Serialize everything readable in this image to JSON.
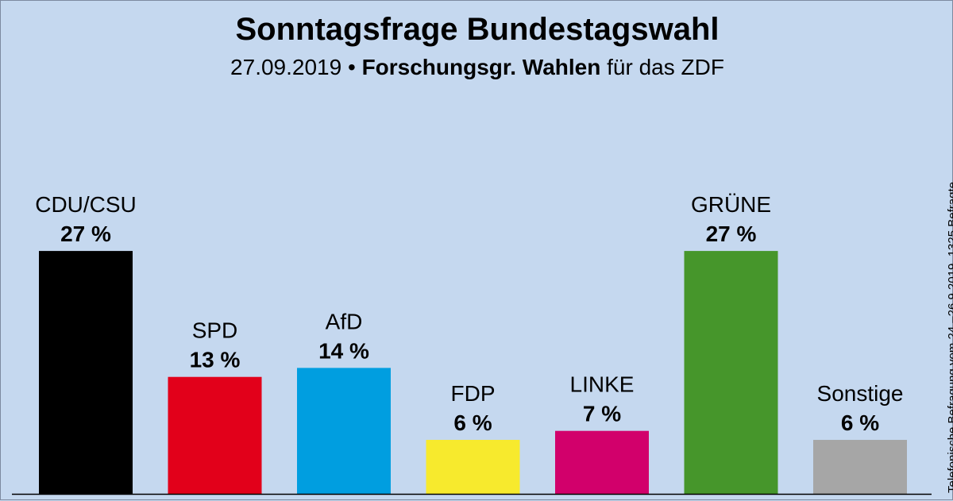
{
  "chart_data": {
    "type": "bar",
    "title": "Sonntagsfrage Bundestagswahl",
    "subtitle_date": "27.09.2019",
    "subtitle_bullet": "•",
    "subtitle_institute": "Forschungsgr. Wahlen",
    "subtitle_suffix": "für das ZDF",
    "side_note": "Telefonische Befragung vom 24.–26.9.2019, 1325 Befragte",
    "categories": [
      "CDU/CSU",
      "SPD",
      "AfD",
      "FDP",
      "LINKE",
      "GRÜNE",
      "Sonstige"
    ],
    "values": [
      27,
      13,
      14,
      6,
      7,
      27,
      6
    ],
    "value_labels": [
      "27 %",
      "13 %",
      "14 %",
      "6 %",
      "7 %",
      "27 %",
      "6 %"
    ],
    "colors": [
      "#000000",
      "#e2001a",
      "#009ee0",
      "#f7ea2d",
      "#d2006b",
      "#46962b",
      "#a6a6a6"
    ],
    "unit": "%",
    "ylim": [
      0,
      30
    ],
    "grid": false,
    "legend": "none"
  }
}
